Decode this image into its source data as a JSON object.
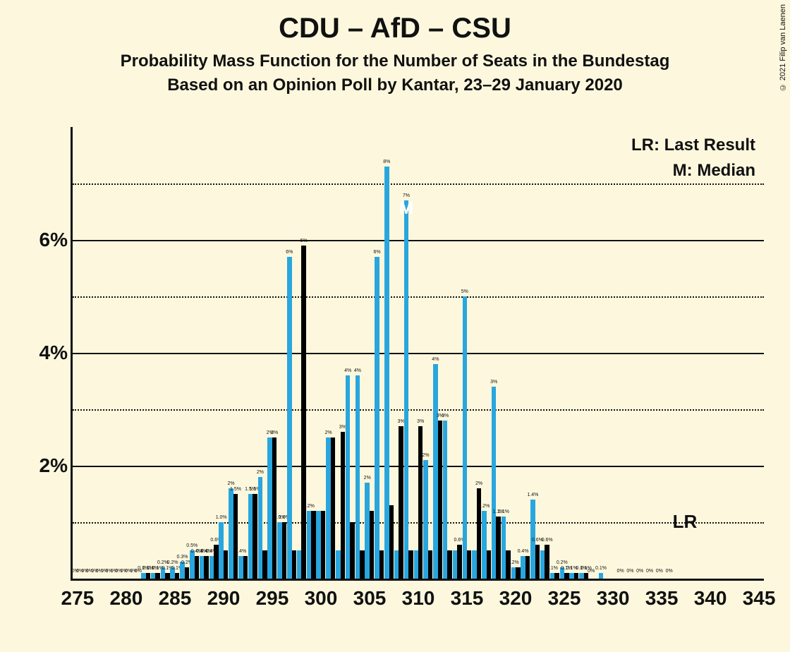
{
  "title": "CDU – AfD – CSU",
  "subtitle1": "Probability Mass Function for the Number of Seats in the Bundestag",
  "subtitle2": "Based on an Opinion Poll by Kantar, 23–29 January 2020",
  "copyright": "© 2021 Filip van Laenen",
  "legend": {
    "lr": "LR: Last Result",
    "m": "M: Median"
  },
  "chart": {
    "type": "bar",
    "background_color": "#fdf8dd",
    "axis_color": "#111111",
    "grid_major_color": "#111111",
    "grid_minor_color": "#111111",
    "bar_color_a": "#29a6de",
    "bar_color_b": "#000000",
    "title_fontsize": 40,
    "subtitle_fontsize": 24,
    "ytick_fontsize": 28,
    "xtick_fontsize": 28,
    "barlabel_fontsize": 7,
    "legend_fontsize": 24,
    "ylim": [
      0,
      8
    ],
    "ymajor": [
      2,
      4,
      6
    ],
    "yminor": [
      1,
      3,
      5,
      7
    ],
    "x_start": 275,
    "x_end": 345,
    "xtick_step": 5,
    "median_x": 309,
    "lr_x": 337,
    "bar_group_width": 0.94,
    "series": [
      {
        "x": 275,
        "a": 0,
        "b": 0,
        "al": "0%",
        "bl": "0%"
      },
      {
        "x": 276,
        "a": 0,
        "b": 0,
        "al": "0%",
        "bl": "0%"
      },
      {
        "x": 277,
        "a": 0,
        "b": 0,
        "al": "0%",
        "bl": "0%"
      },
      {
        "x": 278,
        "a": 0,
        "b": 0,
        "al": "0%",
        "bl": "0%"
      },
      {
        "x": 279,
        "a": 0,
        "b": 0,
        "al": "0%",
        "bl": "0%"
      },
      {
        "x": 280,
        "a": 0,
        "b": 0,
        "al": "0%",
        "bl": "0%"
      },
      {
        "x": 281,
        "a": 0,
        "b": 0,
        "al": "0%",
        "bl": "0%"
      },
      {
        "x": 282,
        "a": 0.1,
        "b": 0.1,
        "al": "0.1%",
        "bl": "0.1%"
      },
      {
        "x": 283,
        "a": 0.1,
        "b": 0.1,
        "al": "0.1%",
        "bl": "0.1%"
      },
      {
        "x": 284,
        "a": 0.2,
        "b": 0.1,
        "al": "0.2%",
        "bl": "0.1%"
      },
      {
        "x": 285,
        "a": 0.2,
        "b": 0.1,
        "al": "0.2%",
        "bl": "0.1%"
      },
      {
        "x": 286,
        "a": 0.3,
        "b": 0.2,
        "al": "0.3%",
        "bl": "0.2%"
      },
      {
        "x": 287,
        "a": 0.5,
        "b": 0.4,
        "al": "0.5%",
        "bl": "0.4%"
      },
      {
        "x": 288,
        "a": 0.4,
        "b": 0.4,
        "al": "0.4%",
        "bl": "0.4%"
      },
      {
        "x": 289,
        "a": 0.4,
        "b": 0.6,
        "al": "0.4%",
        "bl": "0.6%"
      },
      {
        "x": 290,
        "a": 1.0,
        "b": 0.5,
        "al": "1.0%"
      },
      {
        "x": 291,
        "a": 1.6,
        "b": 1.5,
        "al": "2%",
        "bl": "1.5%"
      },
      {
        "x": 292,
        "a": 0.4,
        "b": 0.4,
        "al": "0.4%"
      },
      {
        "x": 293,
        "a": 1.5,
        "b": 1.5,
        "al": "1.5%",
        "bl": "1.5%"
      },
      {
        "x": 294,
        "a": 1.8,
        "b": 0.5,
        "al": "2%"
      },
      {
        "x": 295,
        "a": 2.5,
        "b": 2.5,
        "al": "2%",
        "bl": "2%"
      },
      {
        "x": 296,
        "a": 1.0,
        "b": 1.0,
        "al": "1.0%",
        "bl": "1.0%"
      },
      {
        "x": 297,
        "a": 5.7,
        "b": 0.5,
        "al": "6%"
      },
      {
        "x": 298,
        "a": 0.5,
        "b": 5.9,
        "bl": "6%"
      },
      {
        "x": 299,
        "a": 1.2,
        "b": 1.2,
        "al": "1.2%"
      },
      {
        "x": 300,
        "a": 1.2,
        "b": 1.2
      },
      {
        "x": 301,
        "a": 2.5,
        "b": 2.5,
        "al": "2%"
      },
      {
        "x": 302,
        "a": 0.5,
        "b": 2.6,
        "bl": "3%"
      },
      {
        "x": 303,
        "a": 3.6,
        "b": 1.0,
        "al": "4%"
      },
      {
        "x": 304,
        "a": 3.6,
        "b": 0.5,
        "al": "4%"
      },
      {
        "x": 305,
        "a": 1.7,
        "b": 1.2,
        "al": "2%"
      },
      {
        "x": 306,
        "a": 5.7,
        "b": 0.5,
        "al": "6%"
      },
      {
        "x": 307,
        "a": 7.3,
        "b": 1.3,
        "al": "8%"
      },
      {
        "x": 308,
        "a": 0.5,
        "b": 2.7,
        "bl": "3%"
      },
      {
        "x": 309,
        "a": 6.7,
        "b": 0.5,
        "al": "7%"
      },
      {
        "x": 310,
        "a": 0.5,
        "b": 2.7,
        "bl": "3%"
      },
      {
        "x": 311,
        "a": 2.1,
        "b": 0.5,
        "al": "2%"
      },
      {
        "x": 312,
        "a": 3.8,
        "b": 2.8,
        "al": "4%",
        "bl": "3%"
      },
      {
        "x": 313,
        "a": 2.8,
        "b": 0.5,
        "al": "3%"
      },
      {
        "x": 314,
        "a": 0.5,
        "b": 0.6,
        "bl": "0.6%"
      },
      {
        "x": 315,
        "a": 5.0,
        "b": 0.5,
        "al": "5%"
      },
      {
        "x": 316,
        "a": 0.5,
        "b": 1.6,
        "bl": "2%"
      },
      {
        "x": 317,
        "a": 1.2,
        "b": 0.5,
        "al": "1.2%"
      },
      {
        "x": 318,
        "a": 3.4,
        "b": 1.1,
        "al": "3%",
        "bl": "1.1%"
      },
      {
        "x": 319,
        "a": 1.1,
        "b": 0.5,
        "al": "1.1%"
      },
      {
        "x": 320,
        "a": 0.2,
        "b": 0.2,
        "al": "0.2%"
      },
      {
        "x": 321,
        "a": 0.4,
        "b": 0.4,
        "al": "0.4%"
      },
      {
        "x": 322,
        "a": 1.4,
        "b": 0.6,
        "al": "1.4%",
        "bl": "0.6%"
      },
      {
        "x": 323,
        "a": 0.5,
        "b": 0.6,
        "bl": "0.6%"
      },
      {
        "x": 324,
        "a": 0.1,
        "b": 0.1,
        "al": "0.1%"
      },
      {
        "x": 325,
        "a": 0.2,
        "b": 0.1,
        "al": "0.2%",
        "bl": "0.1%"
      },
      {
        "x": 326,
        "a": 0.1,
        "b": 0.1,
        "al": "0.1%"
      },
      {
        "x": 327,
        "a": 0.1,
        "b": 0.1,
        "al": "0.1%",
        "bl": "0.1%"
      },
      {
        "x": 328,
        "a": 0,
        "b": 0,
        "al": "0%"
      },
      {
        "x": 329,
        "a": 0.1,
        "b": 0,
        "al": "0.1%"
      },
      {
        "x": 330,
        "a": 0,
        "b": 0
      },
      {
        "x": 331,
        "a": 0,
        "b": 0,
        "al": "0%"
      },
      {
        "x": 332,
        "a": 0,
        "b": 0,
        "al": "0%"
      },
      {
        "x": 333,
        "a": 0,
        "b": 0,
        "al": "0%"
      },
      {
        "x": 334,
        "a": 0,
        "b": 0,
        "al": "0%"
      },
      {
        "x": 335,
        "a": 0,
        "b": 0,
        "al": "0%"
      },
      {
        "x": 336,
        "a": 0,
        "b": 0,
        "al": "0%"
      },
      {
        "x": 337,
        "a": 0,
        "b": 0
      },
      {
        "x": 338,
        "a": 0,
        "b": 0
      },
      {
        "x": 339,
        "a": 0,
        "b": 0
      },
      {
        "x": 340,
        "a": 0,
        "b": 0
      },
      {
        "x": 341,
        "a": 0,
        "b": 0
      },
      {
        "x": 342,
        "a": 0,
        "b": 0
      },
      {
        "x": 343,
        "a": 0,
        "b": 0
      },
      {
        "x": 344,
        "a": 0,
        "b": 0
      },
      {
        "x": 345,
        "a": 0,
        "b": 0
      }
    ]
  },
  "lr_text": "LR",
  "m_text": "M"
}
